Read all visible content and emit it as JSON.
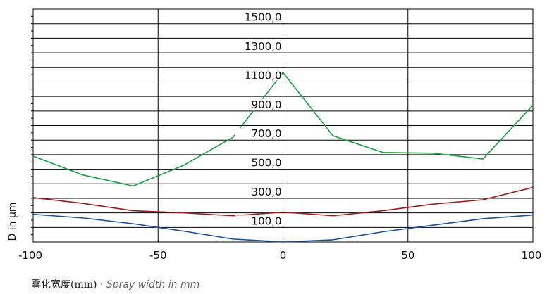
{
  "chart_data": {
    "type": "line",
    "xlabel": "",
    "ylabel": "D in µm",
    "xlim": [
      -100,
      100
    ],
    "ylim": [
      0,
      1600
    ],
    "x_ticks": [
      -100,
      -50,
      0,
      50,
      100
    ],
    "x_tick_labels": [
      "-100",
      "-50",
      "0",
      "50",
      "100"
    ],
    "y_ticks": [
      100,
      300,
      500,
      700,
      900,
      1100,
      1300,
      1500
    ],
    "y_tick_labels": [
      "100,0",
      "300,0",
      "500,0",
      "700,0",
      "900,0",
      "1100,0",
      "1300,0",
      "1500,0"
    ],
    "grid": true,
    "series": [
      {
        "color": "#1aa040",
        "x": [
          -100,
          -80,
          -60,
          -40,
          -20,
          0,
          20,
          40,
          60,
          80,
          100
        ],
        "y": [
          590,
          460,
          385,
          525,
          720,
          1165,
          730,
          615,
          610,
          570,
          940
        ]
      },
      {
        "color": "#9b1c1c",
        "x": [
          -100,
          -80,
          -60,
          -40,
          -20,
          0,
          20,
          40,
          60,
          80,
          100
        ],
        "y": [
          305,
          265,
          215,
          200,
          180,
          205,
          180,
          215,
          260,
          290,
          375
        ]
      },
      {
        "color": "#1d4e9a",
        "x": [
          -100,
          -80,
          -60,
          -40,
          -20,
          0,
          20,
          40,
          60,
          80,
          100
        ],
        "y": [
          190,
          165,
          125,
          75,
          20,
          0,
          15,
          70,
          115,
          160,
          185
        ]
      }
    ]
  },
  "caption": {
    "chinese": "雾化宽度(mm)",
    "separator": "·",
    "english": "Spray width in mm"
  }
}
